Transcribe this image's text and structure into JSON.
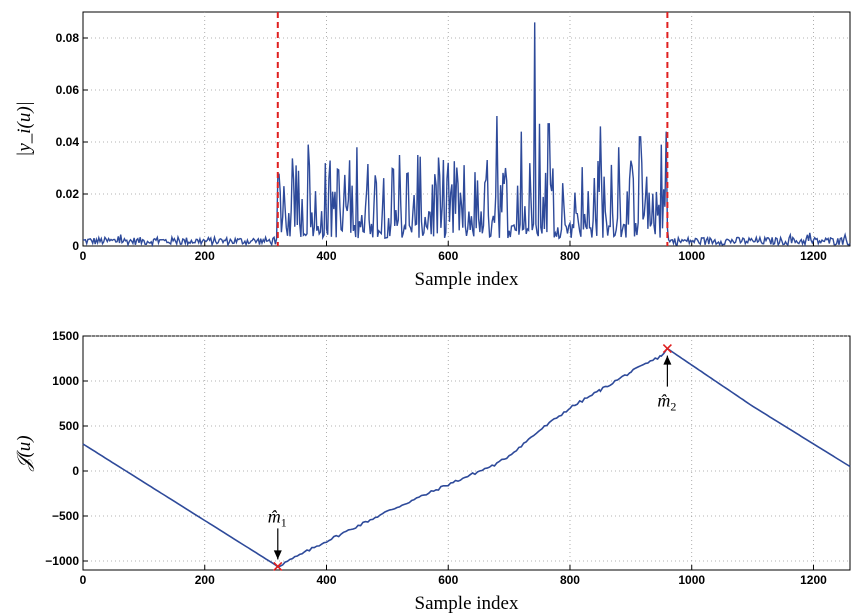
{
  "chart_data": [
    {
      "type": "line",
      "xlabel": "Sample index",
      "ylabel": "|y_i(u)|",
      "xlim": [
        0,
        1260
      ],
      "ylim": [
        0,
        0.09
      ],
      "x_ticks": [
        "0",
        "200",
        "400",
        "600",
        "800",
        "1000",
        "1200"
      ],
      "y_ticks": [
        "0",
        "0.02",
        "0.04",
        "0.06",
        "0.08"
      ],
      "grid": true,
      "colors": {
        "series": "#2e4a9a",
        "markers": "#e02020"
      },
      "change_points": [
        320,
        960
      ],
      "series": [
        {
          "noise_floor": {
            "x": [
              0,
              320
            ],
            "approx_level": 0.002
          },
          "active_segment": {
            "x": [
              320,
              960
            ],
            "typical_range": [
              0.003,
              0.04
            ],
            "peaks": [
              {
                "x": 330,
                "y": 0.023
              },
              {
                "x": 350,
                "y": 0.031
              },
              {
                "x": 370,
                "y": 0.039
              },
              {
                "x": 450,
                "y": 0.038
              },
              {
                "x": 520,
                "y": 0.035
              },
              {
                "x": 550,
                "y": 0.035
              },
              {
                "x": 600,
                "y": 0.032
              },
              {
                "x": 680,
                "y": 0.05
              },
              {
                "x": 720,
                "y": 0.044
              },
              {
                "x": 742,
                "y": 0.086
              },
              {
                "x": 750,
                "y": 0.047
              },
              {
                "x": 765,
                "y": 0.047
              },
              {
                "x": 850,
                "y": 0.046
              },
              {
                "x": 880,
                "y": 0.038
              },
              {
                "x": 915,
                "y": 0.042
              },
              {
                "x": 950,
                "y": 0.039
              },
              {
                "x": 958,
                "y": 0.044
              }
            ]
          },
          "noise_tail": {
            "x": [
              960,
              1260
            ],
            "approx_level": 0.002
          }
        }
      ]
    },
    {
      "type": "line",
      "xlabel": "Sample index",
      "ylabel": "𝒥(u)",
      "xlim": [
        0,
        1260
      ],
      "ylim": [
        -1100,
        1500
      ],
      "x_ticks": [
        "0",
        "200",
        "400",
        "600",
        "800",
        "1000",
        "1200"
      ],
      "y_ticks": [
        "1500",
        "1000",
        "500",
        "0",
        "−500",
        "−1000"
      ],
      "grid": true,
      "series": [
        {
          "x": [
            0,
            320,
            400,
            500,
            600,
            680,
            700,
            750,
            800,
            850,
            900,
            950,
            960,
            1100,
            1260
          ],
          "values": [
            300,
            -1060,
            -780,
            -450,
            -150,
            80,
            170,
            450,
            700,
            900,
            1100,
            1280,
            1360,
            720,
            50
          ]
        }
      ],
      "markers": [
        {
          "label": "m̂",
          "subscript": "1",
          "x": 320,
          "y": -1060
        },
        {
          "label": "m̂",
          "subscript": "2",
          "x": 960,
          "y": 1360
        }
      ]
    }
  ]
}
